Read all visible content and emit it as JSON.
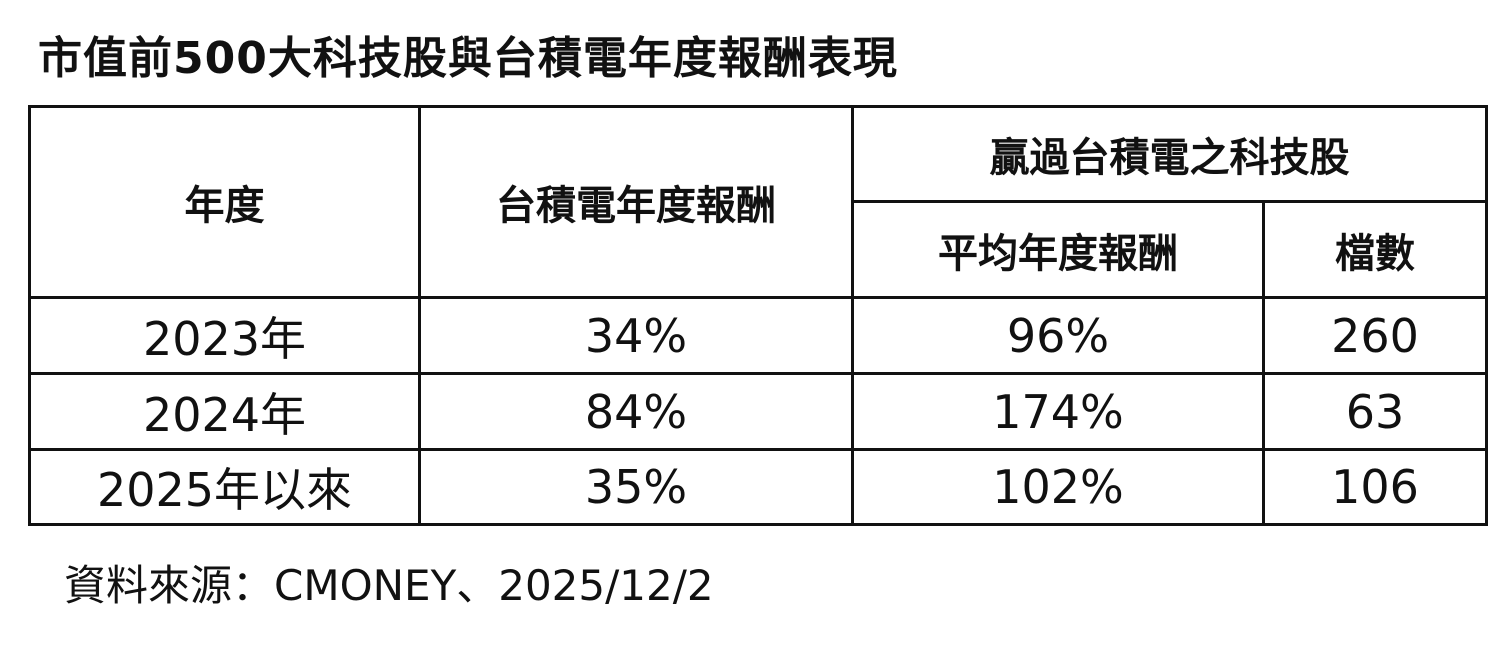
{
  "title": "市值前500大科技股與台積電年度報酬表現",
  "table": {
    "headers": {
      "year": "年度",
      "tsmc_return": "台積電年度報酬",
      "group": "贏過台積電之科技股",
      "avg_return": "平均年度報酬",
      "count": "檔數"
    },
    "rows": [
      {
        "year": "2023年",
        "tsmc_return": "34%",
        "avg_return": "96%",
        "count": "260"
      },
      {
        "year": "2024年",
        "tsmc_return": "84%",
        "avg_return": "174%",
        "count": "63"
      },
      {
        "year": "2025年以來",
        "tsmc_return": "35%",
        "avg_return": "102%",
        "count": "106"
      }
    ]
  },
  "source": "資料來源：CMONEY、2025/12/2"
}
